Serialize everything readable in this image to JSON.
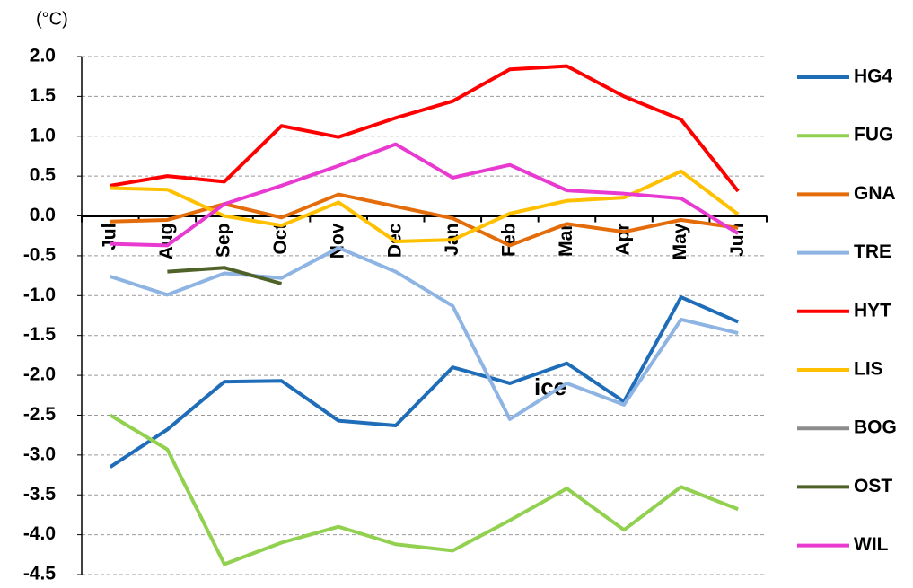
{
  "chart_data": {
    "type": "line",
    "unit_label": "(°C)",
    "annotation": "ice",
    "categories": [
      "Jul",
      "Aug",
      "Sep",
      "Oct",
      "Nov",
      "Dec",
      "Jan",
      "Feb",
      "Mar",
      "Apr",
      "May",
      "Jun"
    ],
    "series": [
      {
        "name": "HG4",
        "color": "#1f6db8",
        "values": [
          -3.15,
          -2.68,
          -2.08,
          -2.07,
          -2.57,
          -2.63,
          -1.9,
          -2.1,
          -1.85,
          -2.33,
          -1.02,
          -1.33
        ]
      },
      {
        "name": "FUG",
        "color": "#92d050",
        "values": [
          -2.5,
          -2.93,
          -4.37,
          -4.1,
          -3.9,
          -4.12,
          -4.2,
          -3.82,
          -3.42,
          -3.94,
          -3.4,
          -3.68
        ]
      },
      {
        "name": "GNA",
        "color": "#e46c0a",
        "values": [
          -0.07,
          -0.05,
          0.15,
          -0.02,
          0.27,
          0.12,
          -0.03,
          -0.37,
          -0.1,
          -0.2,
          -0.05,
          -0.15
        ]
      },
      {
        "name": "TRE",
        "color": "#8eb4e3",
        "values": [
          -0.76,
          -0.99,
          -0.72,
          -0.78,
          -0.4,
          -0.7,
          -1.13,
          -2.55,
          -2.1,
          -2.37,
          -1.3,
          -1.47
        ]
      },
      {
        "name": "HYT",
        "color": "#ff0000",
        "values": [
          0.38,
          0.5,
          0.43,
          1.13,
          0.99,
          1.23,
          1.44,
          1.84,
          1.88,
          1.5,
          1.21,
          0.31
        ]
      },
      {
        "name": "LIS",
        "color": "#ffc000",
        "values": [
          0.35,
          0.33,
          0.0,
          -0.12,
          0.17,
          -0.32,
          -0.3,
          0.03,
          0.19,
          0.23,
          0.56,
          0.02
        ]
      },
      {
        "name": "BOG",
        "color": "#8c8c8c",
        "values": [
          null,
          null,
          null,
          null,
          null,
          null,
          null,
          null,
          null,
          null,
          null,
          null
        ]
      },
      {
        "name": "OST",
        "color": "#4f6228",
        "values": [
          null,
          -0.7,
          -0.65,
          -0.85,
          null,
          null,
          null,
          null,
          null,
          null,
          null,
          null
        ]
      },
      {
        "name": "WIL",
        "color": "#e83ad1",
        "values": [
          -0.35,
          -0.37,
          0.15,
          0.38,
          0.63,
          0.9,
          0.48,
          0.64,
          0.32,
          0.28,
          0.22,
          -0.22
        ]
      }
    ],
    "ylim": [
      -4.5,
      2.0
    ],
    "yticks": [
      {
        "value": 2.0,
        "label": "2.0"
      },
      1.5,
      {
        "value": 1.0,
        "label": "1.0"
      },
      0.5,
      {
        "value": 0.0,
        "label": "0.0"
      },
      -0.5,
      {
        "value": -1.0,
        "label": "-1.0"
      },
      -1.5,
      {
        "value": -2.0,
        "label": "-2.0"
      },
      -2.5,
      {
        "value": -3.0,
        "label": "-3.0"
      },
      -3.5,
      {
        "value": -4.0,
        "label": "-4.0"
      },
      -4.5
    ],
    "grid": true
  }
}
